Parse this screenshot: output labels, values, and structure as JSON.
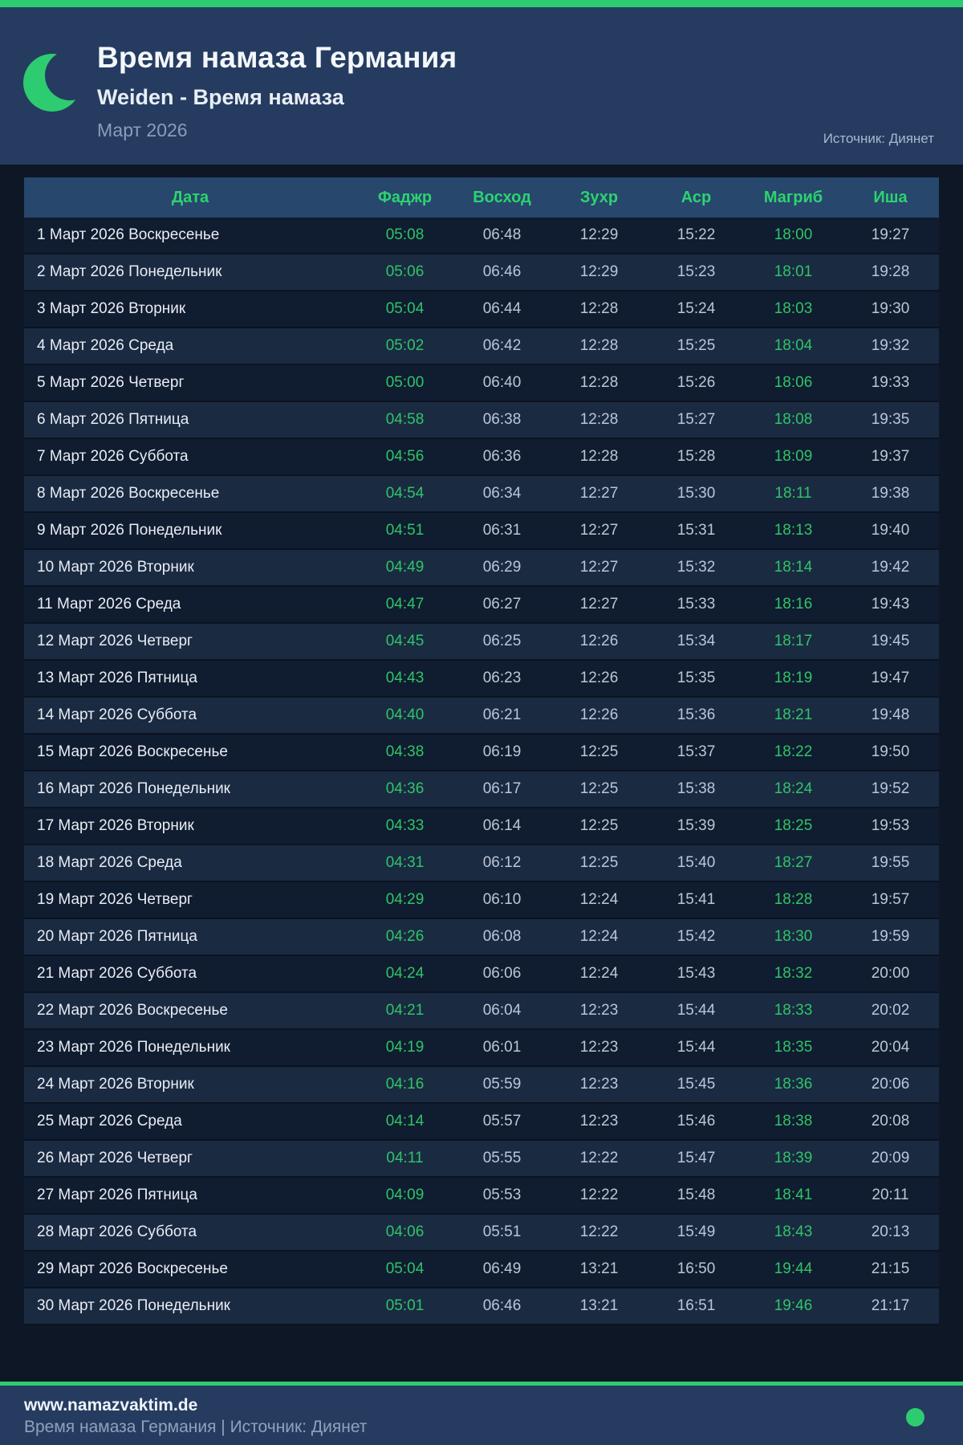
{
  "colors": {
    "accent_green": "#2ecc71",
    "header_background": "#253c60",
    "table_header_background": "#27476d",
    "body_background": "#0d1726",
    "green_value_text": "#2fc468"
  },
  "header": {
    "title": "Время намаза Германия",
    "subtitle": "Weiden - Время намаза",
    "month": "Март 2026",
    "source": "Источник: Диянет"
  },
  "table": {
    "columns": [
      {
        "key": "date",
        "label": "Дата"
      },
      {
        "key": "fajr",
        "label": "Фаджр"
      },
      {
        "key": "sunrise",
        "label": "Восход"
      },
      {
        "key": "dhuhr",
        "label": "Зухр"
      },
      {
        "key": "asr",
        "label": "Аср"
      },
      {
        "key": "maghrib",
        "label": "Магриб"
      },
      {
        "key": "isha",
        "label": "Иша"
      }
    ],
    "rows": [
      {
        "date": "1 Март 2026 Воскресенье",
        "fajr": "05:08",
        "sunrise": "06:48",
        "dhuhr": "12:29",
        "asr": "15:22",
        "maghrib": "18:00",
        "isha": "19:27"
      },
      {
        "date": "2 Март 2026 Понедельник",
        "fajr": "05:06",
        "sunrise": "06:46",
        "dhuhr": "12:29",
        "asr": "15:23",
        "maghrib": "18:01",
        "isha": "19:28"
      },
      {
        "date": "3 Март 2026 Вторник",
        "fajr": "05:04",
        "sunrise": "06:44",
        "dhuhr": "12:28",
        "asr": "15:24",
        "maghrib": "18:03",
        "isha": "19:30"
      },
      {
        "date": "4 Март 2026 Среда",
        "fajr": "05:02",
        "sunrise": "06:42",
        "dhuhr": "12:28",
        "asr": "15:25",
        "maghrib": "18:04",
        "isha": "19:32"
      },
      {
        "date": "5 Март 2026 Четверг",
        "fajr": "05:00",
        "sunrise": "06:40",
        "dhuhr": "12:28",
        "asr": "15:26",
        "maghrib": "18:06",
        "isha": "19:33"
      },
      {
        "date": "6 Март 2026 Пятница",
        "fajr": "04:58",
        "sunrise": "06:38",
        "dhuhr": "12:28",
        "asr": "15:27",
        "maghrib": "18:08",
        "isha": "19:35"
      },
      {
        "date": "7 Март 2026 Суббота",
        "fajr": "04:56",
        "sunrise": "06:36",
        "dhuhr": "12:28",
        "asr": "15:28",
        "maghrib": "18:09",
        "isha": "19:37"
      },
      {
        "date": "8 Март 2026 Воскресенье",
        "fajr": "04:54",
        "sunrise": "06:34",
        "dhuhr": "12:27",
        "asr": "15:30",
        "maghrib": "18:11",
        "isha": "19:38"
      },
      {
        "date": "9 Март 2026 Понедельник",
        "fajr": "04:51",
        "sunrise": "06:31",
        "dhuhr": "12:27",
        "asr": "15:31",
        "maghrib": "18:13",
        "isha": "19:40"
      },
      {
        "date": "10 Март 2026 Вторник",
        "fajr": "04:49",
        "sunrise": "06:29",
        "dhuhr": "12:27",
        "asr": "15:32",
        "maghrib": "18:14",
        "isha": "19:42"
      },
      {
        "date": "11 Март 2026 Среда",
        "fajr": "04:47",
        "sunrise": "06:27",
        "dhuhr": "12:27",
        "asr": "15:33",
        "maghrib": "18:16",
        "isha": "19:43"
      },
      {
        "date": "12 Март 2026 Четверг",
        "fajr": "04:45",
        "sunrise": "06:25",
        "dhuhr": "12:26",
        "asr": "15:34",
        "maghrib": "18:17",
        "isha": "19:45"
      },
      {
        "date": "13 Март 2026 Пятница",
        "fajr": "04:43",
        "sunrise": "06:23",
        "dhuhr": "12:26",
        "asr": "15:35",
        "maghrib": "18:19",
        "isha": "19:47"
      },
      {
        "date": "14 Март 2026 Суббота",
        "fajr": "04:40",
        "sunrise": "06:21",
        "dhuhr": "12:26",
        "asr": "15:36",
        "maghrib": "18:21",
        "isha": "19:48"
      },
      {
        "date": "15 Март 2026 Воскресенье",
        "fajr": "04:38",
        "sunrise": "06:19",
        "dhuhr": "12:25",
        "asr": "15:37",
        "maghrib": "18:22",
        "isha": "19:50"
      },
      {
        "date": "16 Март 2026 Понедельник",
        "fajr": "04:36",
        "sunrise": "06:17",
        "dhuhr": "12:25",
        "asr": "15:38",
        "maghrib": "18:24",
        "isha": "19:52"
      },
      {
        "date": "17 Март 2026 Вторник",
        "fajr": "04:33",
        "sunrise": "06:14",
        "dhuhr": "12:25",
        "asr": "15:39",
        "maghrib": "18:25",
        "isha": "19:53"
      },
      {
        "date": "18 Март 2026 Среда",
        "fajr": "04:31",
        "sunrise": "06:12",
        "dhuhr": "12:25",
        "asr": "15:40",
        "maghrib": "18:27",
        "isha": "19:55"
      },
      {
        "date": "19 Март 2026 Четверг",
        "fajr": "04:29",
        "sunrise": "06:10",
        "dhuhr": "12:24",
        "asr": "15:41",
        "maghrib": "18:28",
        "isha": "19:57"
      },
      {
        "date": "20 Март 2026 Пятница",
        "fajr": "04:26",
        "sunrise": "06:08",
        "dhuhr": "12:24",
        "asr": "15:42",
        "maghrib": "18:30",
        "isha": "19:59"
      },
      {
        "date": "21 Март 2026 Суббота",
        "fajr": "04:24",
        "sunrise": "06:06",
        "dhuhr": "12:24",
        "asr": "15:43",
        "maghrib": "18:32",
        "isha": "20:00"
      },
      {
        "date": "22 Март 2026 Воскресенье",
        "fajr": "04:21",
        "sunrise": "06:04",
        "dhuhr": "12:23",
        "asr": "15:44",
        "maghrib": "18:33",
        "isha": "20:02"
      },
      {
        "date": "23 Март 2026 Понедельник",
        "fajr": "04:19",
        "sunrise": "06:01",
        "dhuhr": "12:23",
        "asr": "15:44",
        "maghrib": "18:35",
        "isha": "20:04"
      },
      {
        "date": "24 Март 2026 Вторник",
        "fajr": "04:16",
        "sunrise": "05:59",
        "dhuhr": "12:23",
        "asr": "15:45",
        "maghrib": "18:36",
        "isha": "20:06"
      },
      {
        "date": "25 Март 2026 Среда",
        "fajr": "04:14",
        "sunrise": "05:57",
        "dhuhr": "12:23",
        "asr": "15:46",
        "maghrib": "18:38",
        "isha": "20:08"
      },
      {
        "date": "26 Март 2026 Четверг",
        "fajr": "04:11",
        "sunrise": "05:55",
        "dhuhr": "12:22",
        "asr": "15:47",
        "maghrib": "18:39",
        "isha": "20:09"
      },
      {
        "date": "27 Март 2026 Пятница",
        "fajr": "04:09",
        "sunrise": "05:53",
        "dhuhr": "12:22",
        "asr": "15:48",
        "maghrib": "18:41",
        "isha": "20:11"
      },
      {
        "date": "28 Март 2026 Суббота",
        "fajr": "04:06",
        "sunrise": "05:51",
        "dhuhr": "12:22",
        "asr": "15:49",
        "maghrib": "18:43",
        "isha": "20:13"
      },
      {
        "date": "29 Март 2026 Воскресенье",
        "fajr": "05:04",
        "sunrise": "06:49",
        "dhuhr": "13:21",
        "asr": "16:50",
        "maghrib": "19:44",
        "isha": "21:15"
      },
      {
        "date": "30 Март 2026 Понедельник",
        "fajr": "05:01",
        "sunrise": "06:46",
        "dhuhr": "13:21",
        "asr": "16:51",
        "maghrib": "19:46",
        "isha": "21:17"
      }
    ]
  },
  "footer": {
    "website": "www.namazvaktim.de",
    "tagline": "Время намаза Германия | Источник: Диянет"
  }
}
